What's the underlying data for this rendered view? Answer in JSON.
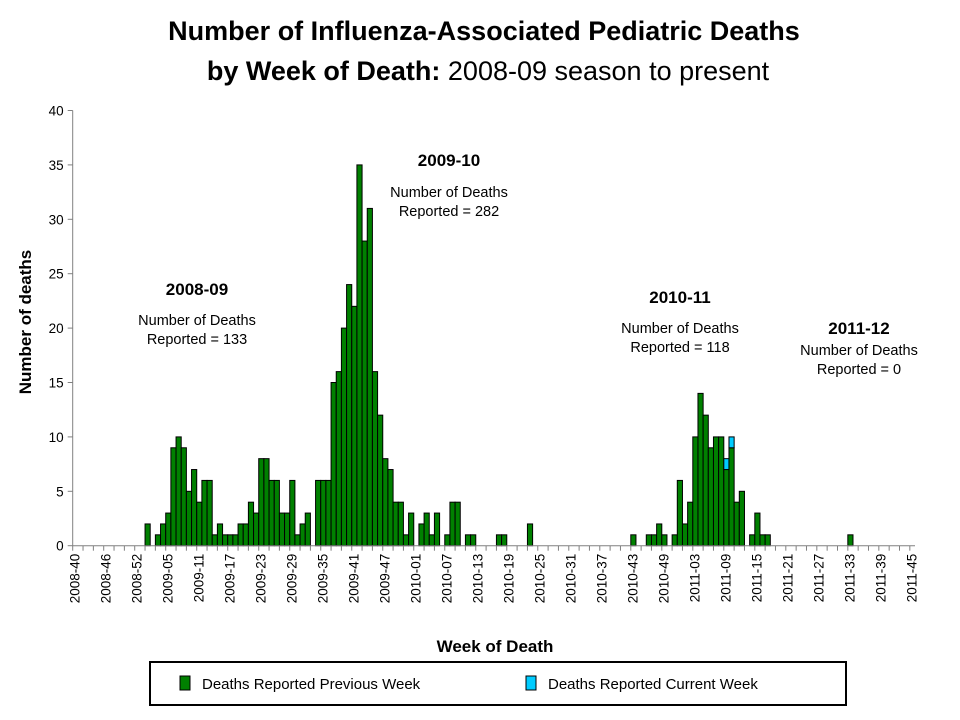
{
  "chart_data": {
    "type": "bar",
    "stacked": true,
    "title_bold": "Number of Influenza-Associated Pediatric Deaths",
    "title_line2_bold": "by Week of Death:",
    "title_line2_rest": " 2008-09 season to present",
    "xlabel": "Week of Death",
    "ylabel": "Number of deaths",
    "ylim": [
      0,
      40
    ],
    "yticks": [
      0,
      5,
      10,
      15,
      20,
      25,
      30,
      35,
      40
    ],
    "grid": false,
    "legend_position": "bottom",
    "categories": [
      "2008-40",
      "2008-41",
      "2008-42",
      "2008-43",
      "2008-44",
      "2008-45",
      "2008-46",
      "2008-47",
      "2008-48",
      "2008-49",
      "2008-50",
      "2008-51",
      "2008-52",
      "2008-53",
      "2009-01",
      "2009-02",
      "2009-03",
      "2009-04",
      "2009-05",
      "2009-06",
      "2009-07",
      "2009-08",
      "2009-09",
      "2009-10",
      "2009-11",
      "2009-12",
      "2009-13",
      "2009-14",
      "2009-15",
      "2009-16",
      "2009-17",
      "2009-18",
      "2009-19",
      "2009-20",
      "2009-21",
      "2009-22",
      "2009-23",
      "2009-24",
      "2009-25",
      "2009-26",
      "2009-27",
      "2009-28",
      "2009-29",
      "2009-30",
      "2009-31",
      "2009-32",
      "2009-33",
      "2009-34",
      "2009-35",
      "2009-36",
      "2009-37",
      "2009-38",
      "2009-39",
      "2009-40",
      "2009-41",
      "2009-42",
      "2009-43",
      "2009-44",
      "2009-45",
      "2009-46",
      "2009-47",
      "2009-48",
      "2009-49",
      "2009-50",
      "2009-51",
      "2009-52",
      "2010-01",
      "2010-02",
      "2010-03",
      "2010-04",
      "2010-05",
      "2010-06",
      "2010-07",
      "2010-08",
      "2010-09",
      "2010-10",
      "2010-11",
      "2010-12",
      "2010-13",
      "2010-14",
      "2010-15",
      "2010-16",
      "2010-17",
      "2010-18",
      "2010-19",
      "2010-20",
      "2010-21",
      "2010-22",
      "2010-23",
      "2010-24",
      "2010-25",
      "2010-26",
      "2010-27",
      "2010-28",
      "2010-29",
      "2010-30",
      "2010-31",
      "2010-32",
      "2010-33",
      "2010-34",
      "2010-35",
      "2010-36",
      "2010-37",
      "2010-38",
      "2010-39",
      "2010-40",
      "2010-41",
      "2010-42",
      "2010-43",
      "2010-44",
      "2010-45",
      "2010-46",
      "2010-47",
      "2010-48",
      "2010-49",
      "2010-50",
      "2010-51",
      "2010-52",
      "2011-01",
      "2011-02",
      "2011-03",
      "2011-04",
      "2011-05",
      "2011-06",
      "2011-07",
      "2011-08",
      "2011-09",
      "2011-10",
      "2011-11",
      "2011-12",
      "2011-13",
      "2011-14",
      "2011-15",
      "2011-16",
      "2011-17",
      "2011-18",
      "2011-19",
      "2011-20",
      "2011-21",
      "2011-22",
      "2011-23",
      "2011-24",
      "2011-25",
      "2011-26",
      "2011-27",
      "2011-28",
      "2011-29",
      "2011-30",
      "2011-31",
      "2011-32",
      "2011-33",
      "2011-34",
      "2011-35",
      "2011-36",
      "2011-37",
      "2011-38",
      "2011-39",
      "2011-40",
      "2011-41",
      "2011-42",
      "2011-43",
      "2011-44",
      "2011-45"
    ],
    "series": [
      {
        "name": "Deaths Reported Previous Week",
        "color": "#008000",
        "values": [
          0,
          0,
          0,
          0,
          0,
          0,
          0,
          0,
          0,
          0,
          0,
          0,
          0,
          0,
          2,
          0,
          1,
          2,
          3,
          9,
          10,
          9,
          5,
          7,
          4,
          6,
          6,
          1,
          2,
          1,
          1,
          1,
          2,
          2,
          4,
          3,
          8,
          8,
          6,
          6,
          3,
          3,
          6,
          1,
          2,
          3,
          0,
          6,
          6,
          6,
          15,
          16,
          20,
          24,
          22,
          35,
          28,
          31,
          16,
          12,
          8,
          7,
          4,
          4,
          1,
          3,
          0,
          2,
          3,
          1,
          3,
          0,
          1,
          4,
          4,
          0,
          1,
          1,
          0,
          0,
          0,
          0,
          1,
          1,
          0,
          0,
          0,
          0,
          2,
          0,
          0,
          0,
          0,
          0,
          0,
          0,
          0,
          0,
          0,
          0,
          0,
          0,
          0,
          0,
          0,
          0,
          0,
          0,
          1,
          0,
          0,
          1,
          1,
          2,
          1,
          0,
          1,
          6,
          2,
          4,
          10,
          14,
          12,
          9,
          10,
          10,
          7,
          9,
          4,
          5,
          0,
          1,
          3,
          1,
          1,
          0,
          0,
          0,
          0,
          0,
          0,
          0,
          0,
          0,
          0,
          0,
          0,
          0,
          0,
          0,
          1,
          0,
          0,
          0,
          0,
          0,
          0,
          0,
          0,
          0,
          0,
          0,
          0
        ]
      },
      {
        "name": "Deaths Reported Current Week",
        "color": "#00ccff",
        "values": [
          0,
          0,
          0,
          0,
          0,
          0,
          0,
          0,
          0,
          0,
          0,
          0,
          0,
          0,
          0,
          0,
          0,
          0,
          0,
          0,
          0,
          0,
          0,
          0,
          0,
          0,
          0,
          0,
          0,
          0,
          0,
          0,
          0,
          0,
          0,
          0,
          0,
          0,
          0,
          0,
          0,
          0,
          0,
          0,
          0,
          0,
          0,
          0,
          0,
          0,
          0,
          0,
          0,
          0,
          0,
          0,
          0,
          0,
          0,
          0,
          0,
          0,
          0,
          0,
          0,
          0,
          0,
          0,
          0,
          0,
          0,
          0,
          0,
          0,
          0,
          0,
          0,
          0,
          0,
          0,
          0,
          0,
          0,
          0,
          0,
          0,
          0,
          0,
          0,
          0,
          0,
          0,
          0,
          0,
          0,
          0,
          0,
          0,
          0,
          0,
          0,
          0,
          0,
          0,
          0,
          0,
          0,
          0,
          0,
          0,
          0,
          0,
          0,
          0,
          0,
          0,
          0,
          0,
          0,
          0,
          0,
          0,
          0,
          0,
          0,
          0,
          1,
          1,
          0,
          0,
          0,
          0,
          0,
          0,
          0,
          0,
          0,
          0,
          0,
          0,
          0,
          0,
          0,
          0,
          0,
          0,
          0,
          0,
          0,
          0,
          0,
          0,
          0,
          0,
          0,
          0,
          0,
          0,
          0,
          0,
          0,
          0,
          0
        ]
      }
    ],
    "annotations": [
      {
        "season": "2008-09",
        "line1": "Number of Deaths",
        "line2": "Reported = 133"
      },
      {
        "season": "2009-10",
        "line1": "Number of Deaths",
        "line2": "Reported = 282"
      },
      {
        "season": "2010-11",
        "line1": "Number of Deaths",
        "line2": "Reported = 118"
      },
      {
        "season": "2011-12",
        "line1": "Number of Deaths",
        "line2": "Reported = 0"
      }
    ]
  }
}
